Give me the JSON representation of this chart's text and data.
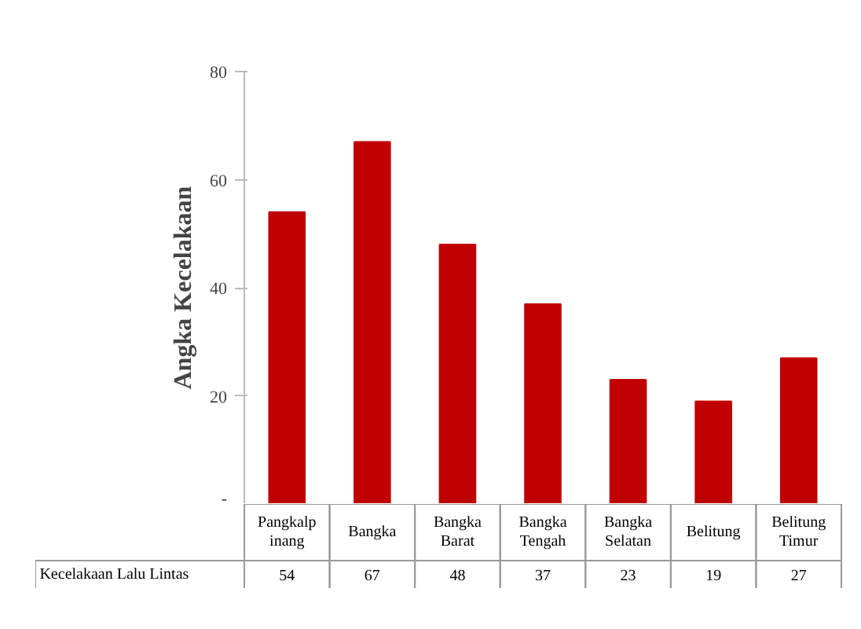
{
  "chart_data": {
    "type": "bar",
    "ylabel": "Angka Kecelakaan",
    "categories": [
      "Pangkalpinang",
      "Bangka",
      "Bangka Barat",
      "Bangka Tengah",
      "Bangka Selatan",
      "Belitung",
      "Belitung Timur"
    ],
    "series": [
      {
        "name": "Kecelakaan Lalu Lintas",
        "color": "#c00000",
        "values": [
          54,
          67,
          48,
          37,
          23,
          19,
          27
        ]
      }
    ],
    "ylim": [
      0,
      80
    ],
    "yticks": [
      {
        "value": 0,
        "label": "-"
      },
      20,
      40,
      60,
      80
    ],
    "grid": false,
    "data_labels": true
  }
}
